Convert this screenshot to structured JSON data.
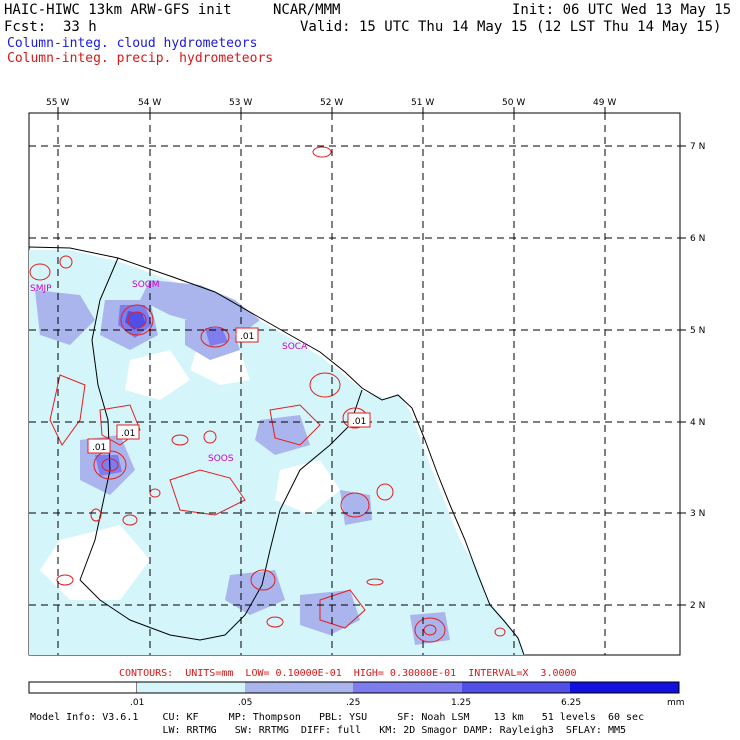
{
  "header": {
    "model": "HAIC-HIWC 13km ARW-GFS init",
    "org": "NCAR/MMM",
    "init": "Init: 06 UTC Wed 13 May 15",
    "fcst": "Fcst:  33 h",
    "valid": "Valid: 15 UTC Thu 14 May 15 (12 LST Thu 14 May 15)"
  },
  "fields": {
    "cloud": "Column-integ. cloud hydrometeors",
    "precip": "Column-integ. precip. hydrometeors"
  },
  "axes": {
    "lon_labels": [
      "55 W",
      "54 W",
      "53 W",
      "52 W",
      "51 W",
      "50 W",
      "49 W"
    ],
    "lat_labels": [
      "7 N",
      "6 N",
      "5 N",
      "4 N",
      "3 N",
      "2 N"
    ]
  },
  "stations": [
    "SMJP",
    "SOGM",
    "SOCA",
    "SOOS"
  ],
  "contour_labels": [
    ".01",
    ".01",
    ".01",
    ".01"
  ],
  "contours_line": "CONTOURS:  UNITS=mm  LOW= 0.10000E-01  HIGH= 0.30000E-01  INTERVAL=X  3.0000",
  "colorbar": {
    "ticks": [
      ".01",
      ".05",
      ".25",
      "1.25",
      "6.25"
    ],
    "units": "mm",
    "colors": [
      "#ffffff",
      "#d4f5fa",
      "#aab5ee",
      "#7d7dee",
      "#5050e8",
      "#1010e0"
    ]
  },
  "model_info": {
    "line1": "Model Info: V3.6.1    CU: KF     MP: Thompson   PBL: YSU     SF: Noah LSM    13 km   51 levels  60 sec",
    "line2": "                      LW: RRTMG   SW: RRTMG  DIFF: full   KM: 2D Smagor DAMP: Rayleigh3  SFLAY: MM5"
  }
}
